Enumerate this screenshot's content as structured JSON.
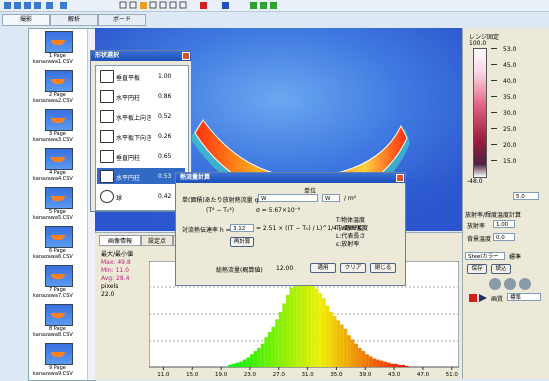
{
  "toolbar": {
    "tabs": [
      "撮影",
      "解析",
      "ボード"
    ]
  },
  "thumbnails": [
    {
      "page": "1 Page",
      "file": "kanazawa1.CSV"
    },
    {
      "page": "2 Page",
      "file": "kanazawa2.CSV"
    },
    {
      "page": "3 Page",
      "file": "kanazawa3.CSV"
    },
    {
      "page": "4 Page",
      "file": "kanazawa4.CSV"
    },
    {
      "page": "5 Page",
      "file": "kanazawa5.CSV"
    },
    {
      "page": "6 Page",
      "file": "kanazawa6.CSV"
    },
    {
      "page": "7 Page",
      "file": "kanazawa7.CSV"
    },
    {
      "page": "8 Page",
      "file": "kanazawa8.CSV"
    },
    {
      "page": "9 Page",
      "file": "kanazawa9.CSV"
    }
  ],
  "shape_dialog": {
    "title": "形状選択",
    "options": [
      {
        "label": "垂直平板",
        "value": "1.00"
      },
      {
        "label": "水平円柱",
        "value": "0.86"
      },
      {
        "label": "水平板上向き",
        "value": "0.52"
      },
      {
        "label": "水平板下向き",
        "value": "0.26"
      },
      {
        "label": "垂直円柱",
        "value": "0.65"
      },
      {
        "label": "水平円柱",
        "value": "0.53"
      },
      {
        "label": "球",
        "value": "0.42"
      }
    ]
  },
  "heat_dialog": {
    "title": "熱流量計算",
    "unit_header": "単位",
    "q_label": "単(面積)あたり放射熱流量 q =",
    "q_value": "W",
    "q_unit_select": "W",
    "q_unit": "/ m²",
    "formula1": "(T⁴ − T₀⁴)",
    "formula2": "σ = 5.67×10⁻⁸",
    "h_label": "対流熱伝達率 h =",
    "h_value": "3.12",
    "h_formula": "= 2.51 × ((T − T₀) / L)^1/4  [W/m²K]",
    "recalc": "再計算",
    "notes": [
      "T:物体温度",
      "T₀:周囲温度",
      "L:代表長さ",
      "ε:放射率"
    ],
    "total_label": "総熱流量(概算値)",
    "total_value": "12.00",
    "buttons": [
      "適用",
      "クリア",
      "閉じる"
    ]
  },
  "right_panel": {
    "range_fixed": "レンジ固定",
    "scale_top": "100.0",
    "scale_labels": [
      "53.0",
      "45.0",
      "40.0",
      "35.0",
      "30.0",
      "25.0",
      "20.0",
      "15.0"
    ],
    "scale_bottom": "-48.0",
    "scale_min": "5.0",
    "emissivity_check": "放射率/輝度温度計算",
    "emissivity_label": "放射率",
    "emissivity_value": "1.00",
    "background_label": "背景温度",
    "background_value": "0.0",
    "palette": "Steelカラー",
    "palette2": "標準",
    "btn_a": "保存",
    "btn_b": "読込",
    "mode_label": "画質",
    "mode_value": "標準"
  },
  "bottom_panel": {
    "tabs": [
      "画像情報",
      "設定点",
      "領域"
    ],
    "info_title": "最大/最小値",
    "info_lines": [
      "Max: 49.8",
      "Min: 11.0",
      "Avg: 28.4",
      "pixels",
      "22.0"
    ]
  },
  "histogram": {
    "bins": [
      20,
      20.5,
      21,
      21.5,
      22,
      22.5,
      23,
      23.5,
      24,
      24.5,
      25,
      25.5,
      26,
      26.5,
      27,
      27.5,
      28,
      28.5,
      29,
      29.5,
      30,
      30.5,
      31,
      31.5,
      32,
      32.5,
      33,
      33.5,
      34,
      34.5,
      35,
      35.5,
      36,
      36.5,
      37,
      37.5,
      38,
      38.5,
      39,
      39.5,
      40,
      40.5,
      41,
      41.5,
      42,
      42.5,
      43,
      43.5,
      44,
      44.5,
      45
    ],
    "counts": [
      2,
      3,
      4,
      5,
      7,
      9,
      12,
      15,
      18,
      22,
      28,
      33,
      38,
      45,
      52,
      60,
      68,
      75,
      82,
      88,
      95,
      90,
      85,
      80,
      74,
      70,
      65,
      58,
      52,
      48,
      44,
      40,
      36,
      30,
      26,
      22,
      18,
      15,
      12,
      10,
      8,
      7,
      6,
      5,
      4,
      3,
      3,
      2,
      2,
      1
    ],
    "xlim": [
      9,
      52
    ],
    "ylim": [
      0,
      100
    ],
    "xticks": [
      {
        "value": 11,
        "label": "11.0"
      },
      {
        "value": 15,
        "label": "15.0"
      },
      {
        "value": 19,
        "label": "19.0"
      },
      {
        "value": 23,
        "label": "23.0"
      },
      {
        "value": 27,
        "label": "27.0"
      },
      {
        "value": 31,
        "label": "31.0"
      },
      {
        "value": 35,
        "label": "35.0"
      },
      {
        "value": 39,
        "label": "39.0"
      },
      {
        "value": 43,
        "label": "43.0"
      },
      {
        "value": 47,
        "label": "47.0"
      },
      {
        "value": 51,
        "label": "51.0"
      }
    ]
  }
}
